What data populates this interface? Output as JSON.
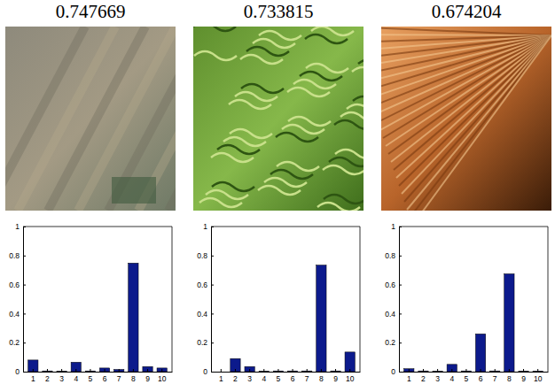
{
  "chart_data": [
    {
      "type": "bar",
      "title": "0.747669",
      "categories": [
        "1",
        "2",
        "3",
        "4",
        "5",
        "6",
        "7",
        "8",
        "9",
        "10"
      ],
      "values": [
        0.08,
        0.005,
        0.002,
        0.065,
        0.005,
        0.025,
        0.015,
        0.748,
        0.035,
        0.025
      ],
      "color": "#0c1a8c",
      "ylim": [
        0,
        1
      ],
      "yticks": [
        0,
        0.2,
        0.4,
        0.6,
        0.8,
        1
      ]
    },
    {
      "type": "bar",
      "title": "0.733815",
      "categories": [
        "1",
        "2",
        "3",
        "4",
        "5",
        "6",
        "7",
        "8",
        "9",
        "10"
      ],
      "values": [
        0.0,
        0.09,
        0.035,
        0.002,
        0.005,
        0.005,
        0.005,
        0.734,
        0.005,
        0.135
      ],
      "color": "#0c1a8c",
      "ylim": [
        0,
        1
      ],
      "yticks": [
        0,
        0.2,
        0.4,
        0.6,
        0.8,
        1
      ]
    },
    {
      "type": "bar",
      "title": "0.674204",
      "categories": [
        "1",
        "2",
        "3",
        "4",
        "5",
        "6",
        "7",
        "8",
        "9",
        "10"
      ],
      "values": [
        0.02,
        0.005,
        0.002,
        0.05,
        0.005,
        0.26,
        0.005,
        0.674,
        0.003,
        0.003
      ],
      "color": "#0c1a8c",
      "ylim": [
        0,
        1
      ],
      "yticks": [
        0,
        0.2,
        0.4,
        0.6,
        0.8,
        1
      ]
    }
  ]
}
